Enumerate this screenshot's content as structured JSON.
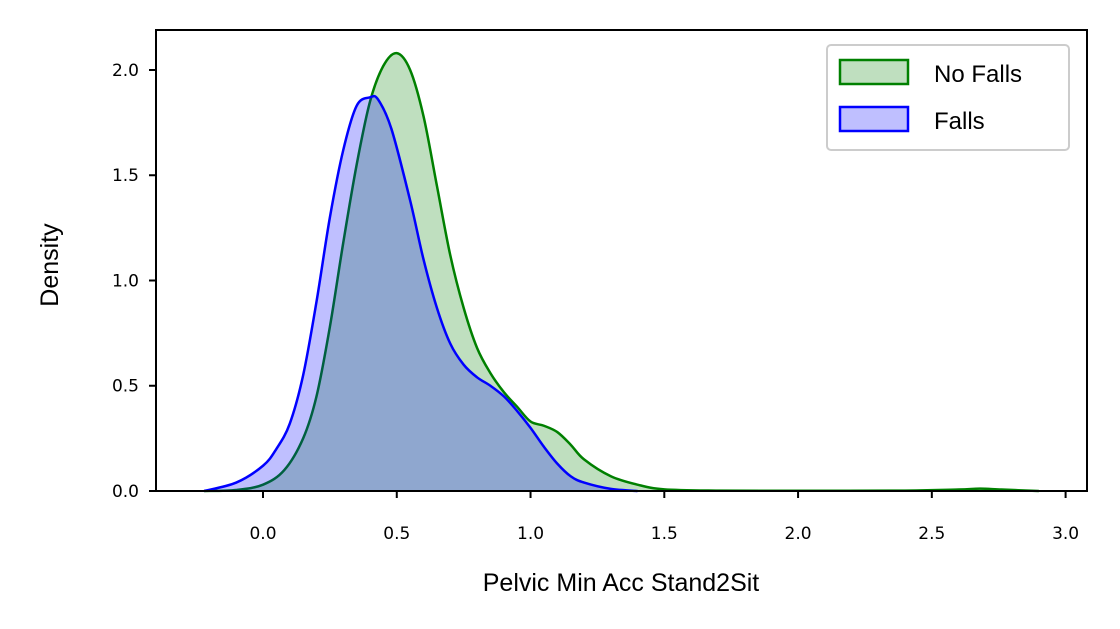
{
  "chart_data": {
    "type": "area",
    "title": "",
    "xlabel": "Pelvic Min Acc Stand2Sit",
    "ylabel": "Density",
    "xlim": [
      -0.4,
      3.08
    ],
    "ylim": [
      0,
      2.19
    ],
    "x_ticks": [
      0.0,
      0.5,
      1.0,
      1.5,
      2.0,
      2.5,
      3.0
    ],
    "x_tick_labels": [
      "0.0",
      "0.5",
      "1.0",
      "1.5",
      "2.0",
      "2.5",
      "3.0"
    ],
    "y_ticks": [
      0.0,
      0.5,
      1.0,
      1.5,
      2.0
    ],
    "y_tick_labels": [
      "0.0",
      "0.5",
      "1.0",
      "1.5",
      "2.0"
    ],
    "grid": false,
    "legend_position": "top-right",
    "series": [
      {
        "name": "No Falls",
        "color": "#008000",
        "fill": "#008000",
        "fill_opacity": 0.25,
        "x": [
          -0.22,
          -0.1,
          0.0,
          0.08,
          0.15,
          0.2,
          0.25,
          0.3,
          0.35,
          0.4,
          0.45,
          0.5,
          0.55,
          0.6,
          0.65,
          0.7,
          0.75,
          0.8,
          0.85,
          0.9,
          0.95,
          1.0,
          1.05,
          1.1,
          1.15,
          1.2,
          1.3,
          1.4,
          1.5,
          1.7,
          2.0,
          2.4,
          2.6,
          2.68,
          2.76,
          2.9
        ],
        "y": [
          0.0,
          0.005,
          0.03,
          0.1,
          0.25,
          0.45,
          0.78,
          1.18,
          1.55,
          1.85,
          2.02,
          2.08,
          2.0,
          1.78,
          1.45,
          1.12,
          0.87,
          0.68,
          0.56,
          0.47,
          0.4,
          0.33,
          0.31,
          0.28,
          0.22,
          0.15,
          0.07,
          0.03,
          0.008,
          0.002,
          0.001,
          0.002,
          0.007,
          0.011,
          0.007,
          0.0
        ]
      },
      {
        "name": "Falls",
        "color": "#0000ff",
        "fill": "#0000ff",
        "fill_opacity": 0.25,
        "x": [
          -0.22,
          -0.1,
          0.0,
          0.05,
          0.1,
          0.15,
          0.2,
          0.25,
          0.3,
          0.35,
          0.4,
          0.43,
          0.48,
          0.55,
          0.6,
          0.65,
          0.7,
          0.75,
          0.8,
          0.85,
          0.9,
          0.95,
          1.0,
          1.05,
          1.1,
          1.15,
          1.2,
          1.3,
          1.4
        ],
        "y": [
          0.0,
          0.04,
          0.12,
          0.2,
          0.32,
          0.55,
          0.9,
          1.3,
          1.62,
          1.83,
          1.87,
          1.86,
          1.72,
          1.38,
          1.1,
          0.87,
          0.7,
          0.6,
          0.54,
          0.5,
          0.45,
          0.38,
          0.3,
          0.21,
          0.13,
          0.07,
          0.04,
          0.01,
          0.0
        ]
      }
    ]
  }
}
